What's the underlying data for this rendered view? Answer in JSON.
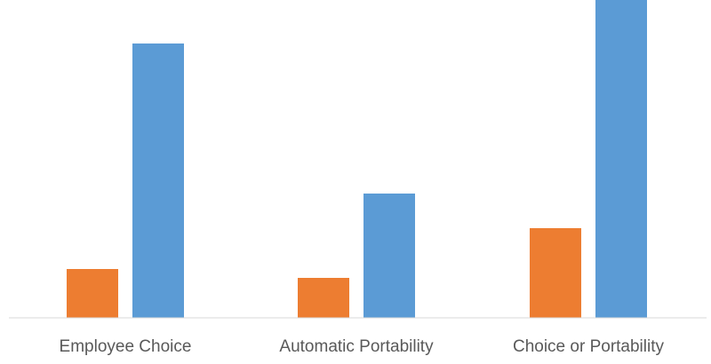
{
  "chart_data": {
    "type": "bar",
    "categories": [
      "Employee Choice",
      "Automatic Portability",
      "Choice or Portability"
    ],
    "series": [
      {
        "color": "#ED7D31",
        "values": [
          55,
          45,
          101
        ]
      },
      {
        "color": "#5B9BD5",
        "values": [
          309,
          140,
          358
        ]
      }
    ],
    "title": "",
    "xlabel": "",
    "ylabel": "",
    "ylim": [
      0,
      358
    ],
    "grid": false,
    "legend": "none",
    "axis_color": "#D9D9D9"
  }
}
